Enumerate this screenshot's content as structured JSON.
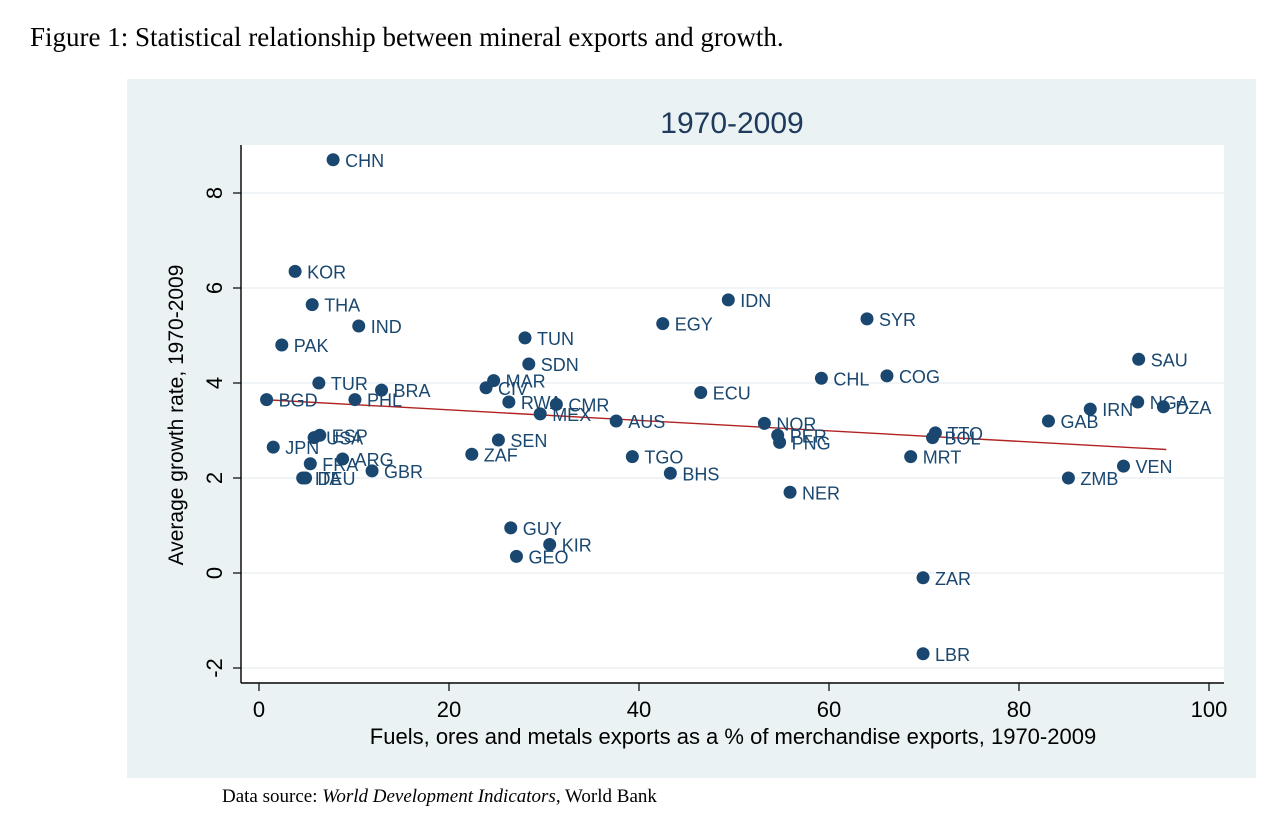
{
  "figure": {
    "caption": "Figure 1:  Statistical relationship between mineral exports and growth.",
    "source_prefix": "Data source: ",
    "source_italic": "World Development Indicators",
    "source_suffix": ", World Bank"
  },
  "chart_data": {
    "type": "scatter",
    "title": "1970-2009",
    "xlabel": "Fuels, ores and metals exports as a % of merchandise exports, 1970-2009",
    "ylabel": "Average growth rate, 1970-2009",
    "xlim": [
      0,
      100
    ],
    "ylim": [
      -2,
      9
    ],
    "xticks": [
      0,
      20,
      40,
      60,
      80,
      100
    ],
    "yticks": [
      -2,
      0,
      2,
      4,
      6,
      8
    ],
    "grid": "horizontal",
    "colors": {
      "marker": "#1a476f",
      "fit_line": "#b22222",
      "label": "#1a476f",
      "plot_bg": "#ffffff",
      "panel_bg": "#eaf2f3"
    },
    "fit_line": {
      "x": [
        0.5,
        95.5
      ],
      "y": [
        3.65,
        2.6
      ]
    },
    "points": [
      {
        "label": "CHN",
        "x": 7.8,
        "y": 8.7
      },
      {
        "label": "KOR",
        "x": 3.8,
        "y": 6.35
      },
      {
        "label": "THA",
        "x": 5.6,
        "y": 5.65
      },
      {
        "label": "IND",
        "x": 10.5,
        "y": 5.2
      },
      {
        "label": "PAK",
        "x": 2.4,
        "y": 4.8
      },
      {
        "label": "TUR",
        "x": 6.3,
        "y": 4.0
      },
      {
        "label": "BRA",
        "x": 12.9,
        "y": 3.85
      },
      {
        "label": "PHL",
        "x": 10.1,
        "y": 3.65
      },
      {
        "label": "BGD",
        "x": 0.8,
        "y": 3.65
      },
      {
        "label": "ESP",
        "x": 6.4,
        "y": 2.9
      },
      {
        "label": "USA",
        "x": 5.8,
        "y": 2.85
      },
      {
        "label": "JPN",
        "x": 1.5,
        "y": 2.65
      },
      {
        "label": "FRA",
        "x": 5.4,
        "y": 2.3
      },
      {
        "label": "ARG",
        "x": 8.8,
        "y": 2.4
      },
      {
        "label": "GBR",
        "x": 11.9,
        "y": 2.15
      },
      {
        "label": "DEU",
        "x": 4.9,
        "y": 2.0
      },
      {
        "label": "ITA",
        "x": 4.6,
        "y": 2.0
      },
      {
        "label": "TUN",
        "x": 28.0,
        "y": 4.95
      },
      {
        "label": "SDN",
        "x": 28.4,
        "y": 4.4
      },
      {
        "label": "MAR",
        "x": 24.7,
        "y": 4.05
      },
      {
        "label": "CIV",
        "x": 23.9,
        "y": 3.9
      },
      {
        "label": "RWA",
        "x": 26.3,
        "y": 3.6
      },
      {
        "label": "CMR",
        "x": 31.3,
        "y": 3.55
      },
      {
        "label": "MEX",
        "x": 29.6,
        "y": 3.35
      },
      {
        "label": "AUS",
        "x": 37.6,
        "y": 3.2
      },
      {
        "label": "SEN",
        "x": 25.2,
        "y": 2.8
      },
      {
        "label": "ZAF",
        "x": 22.4,
        "y": 2.5
      },
      {
        "label": "EGY",
        "x": 42.5,
        "y": 5.25
      },
      {
        "label": "IDN",
        "x": 49.4,
        "y": 5.75
      },
      {
        "label": "ECU",
        "x": 46.5,
        "y": 3.8
      },
      {
        "label": "TGO",
        "x": 39.3,
        "y": 2.45
      },
      {
        "label": "BHS",
        "x": 43.3,
        "y": 2.1
      },
      {
        "label": "GUY",
        "x": 26.5,
        "y": 0.95
      },
      {
        "label": "KIR",
        "x": 30.6,
        "y": 0.6
      },
      {
        "label": "GEO",
        "x": 27.1,
        "y": 0.35
      },
      {
        "label": "SYR",
        "x": 64.0,
        "y": 5.35
      },
      {
        "label": "CHL",
        "x": 59.2,
        "y": 4.1
      },
      {
        "label": "COG",
        "x": 66.1,
        "y": 4.15
      },
      {
        "label": "NOR",
        "x": 53.2,
        "y": 3.15
      },
      {
        "label": "PER",
        "x": 54.6,
        "y": 2.9
      },
      {
        "label": "PNG",
        "x": 54.8,
        "y": 2.75
      },
      {
        "label": "NER",
        "x": 55.9,
        "y": 1.7
      },
      {
        "label": "TTO",
        "x": 71.2,
        "y": 2.95
      },
      {
        "label": "BOL",
        "x": 70.9,
        "y": 2.85
      },
      {
        "label": "MRT",
        "x": 68.6,
        "y": 2.45
      },
      {
        "label": "ZAR",
        "x": 69.9,
        "y": -0.1
      },
      {
        "label": "LBR",
        "x": 69.9,
        "y": -1.7
      },
      {
        "label": "SAU",
        "x": 92.6,
        "y": 4.5
      },
      {
        "label": "GAB",
        "x": 83.1,
        "y": 3.2
      },
      {
        "label": "IRN",
        "x": 87.5,
        "y": 3.45
      },
      {
        "label": "NGA",
        "x": 92.5,
        "y": 3.6
      },
      {
        "label": "DZA",
        "x": 95.2,
        "y": 3.5
      },
      {
        "label": "VEN",
        "x": 91.0,
        "y": 2.25
      },
      {
        "label": "ZMB",
        "x": 85.2,
        "y": 2.0
      }
    ]
  }
}
